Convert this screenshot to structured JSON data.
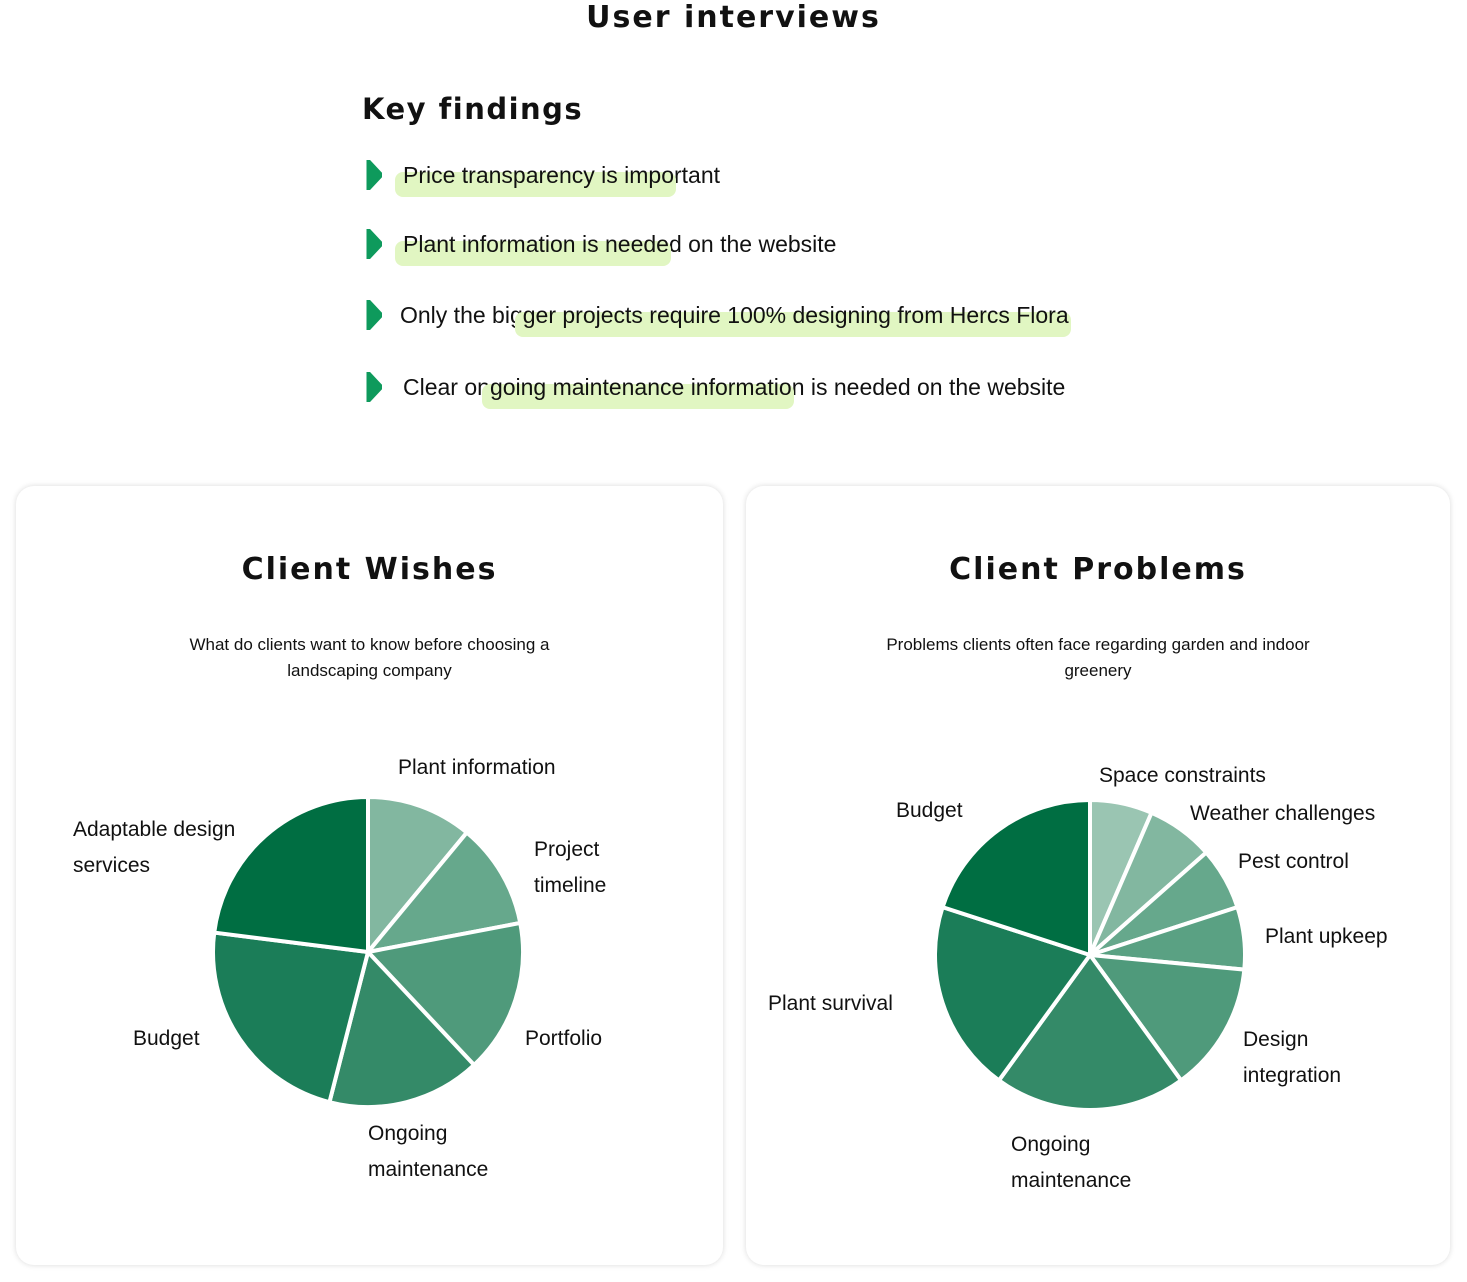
{
  "page_title": "User interviews",
  "key_findings": {
    "heading": "Key findings",
    "icon": "chevron-right-icon",
    "accent": "#0e9a5c",
    "highlight_color": "#e1f6c2",
    "items": [
      {
        "before": "",
        "highlight": "Price transparency is impo",
        "after": "rtant"
      },
      {
        "before": "",
        "highlight": "Plant information is neede",
        "after": "d on the website"
      },
      {
        "before": "Only the big",
        "highlight": "ger projects require 100% designing from Hercs Flora",
        "after": ""
      },
      {
        "before": "Clear on",
        "highlight": "going maintenance informatio",
        "after": "n is needed on the website"
      }
    ]
  },
  "chart_data": [
    {
      "type": "pie",
      "title": "Client Wishes",
      "subtitle": "What do clients want to know before choosing a landscaping company",
      "slices": [
        {
          "label": "Plant information",
          "value": 11,
          "color": "#82b7a0"
        },
        {
          "label": "Project timeline",
          "value": 11,
          "color": "#66a88c"
        },
        {
          "label": "Portfolio",
          "value": 16,
          "color": "#4f9a7b"
        },
        {
          "label": "Ongoing maintenance",
          "value": 16,
          "color": "#348a68"
        },
        {
          "label": "Budget",
          "value": 23,
          "color": "#1b7d58"
        },
        {
          "label": "Adaptable design services",
          "value": 23,
          "color": "#006e42"
        }
      ]
    },
    {
      "type": "pie",
      "title": "Client Problems",
      "subtitle": "Problems clients often face regarding garden and indoor greenery",
      "slices": [
        {
          "label": "Space constraints",
          "value": 6.5,
          "color": "#9ac5b2"
        },
        {
          "label": "Weather challenges",
          "value": 7,
          "color": "#82b7a0"
        },
        {
          "label": "Pest control",
          "value": 6.5,
          "color": "#66a88c"
        },
        {
          "label": "Plant upkeep",
          "value": 6.5,
          "color": "#5aa183"
        },
        {
          "label": "Design integration",
          "value": 13.5,
          "color": "#4f9a7b"
        },
        {
          "label": "Ongoing maintenance",
          "value": 20,
          "color": "#348a68"
        },
        {
          "label": "Plant survival",
          "value": 20,
          "color": "#1b7d58"
        },
        {
          "label": "Budget",
          "value": 20,
          "color": "#006e42"
        }
      ]
    }
  ]
}
